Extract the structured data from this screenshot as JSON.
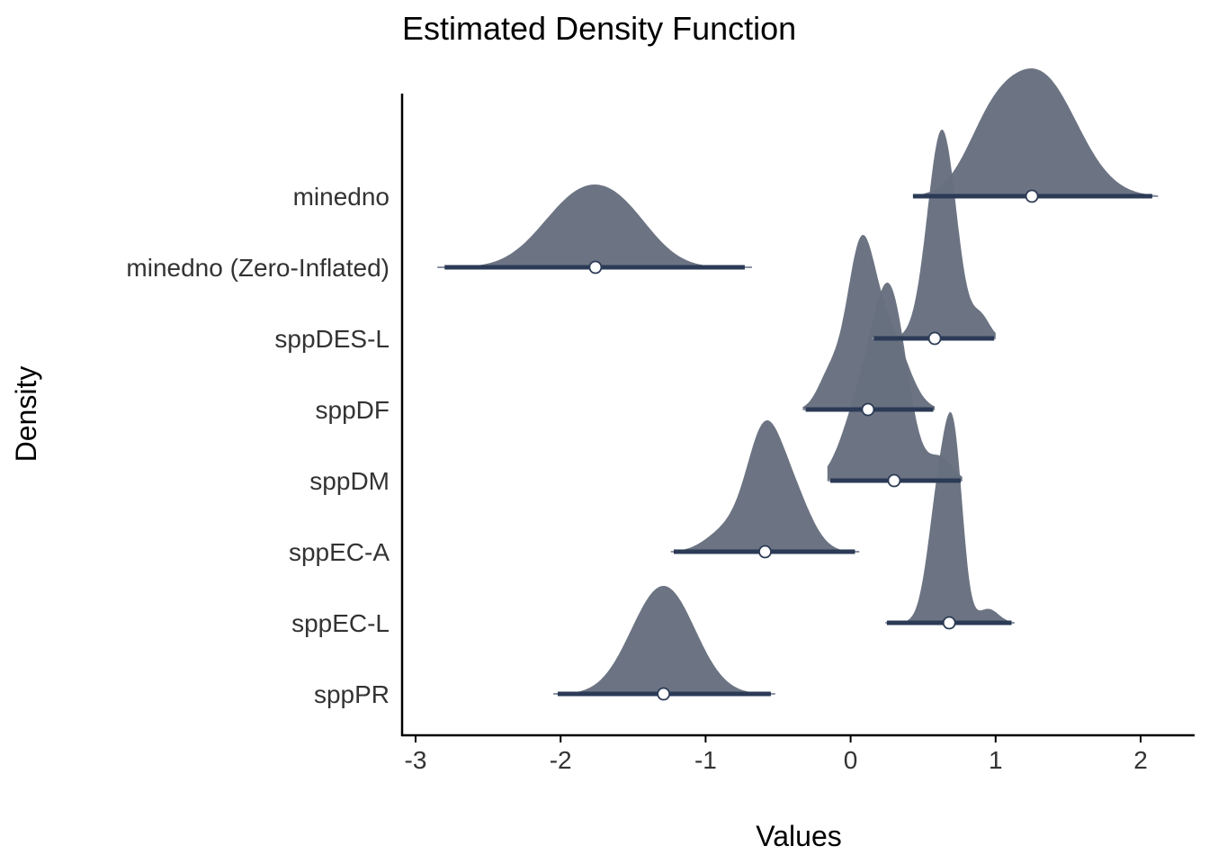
{
  "chart_data": {
    "type": "ridgeline-density",
    "title": "Estimated Density Function",
    "xlabel": "Values",
    "ylabel": "Density",
    "xlim": [
      -3.1,
      2.35
    ],
    "x_ticks": [
      -3,
      -2,
      -1,
      0,
      1,
      2
    ],
    "x_tick_labels": [
      "-3",
      "-2",
      "-1",
      "0",
      "1",
      "2"
    ],
    "grid": false,
    "colors": {
      "fill": "#67707f",
      "interval": "#2b3a55",
      "point": "#ffffff"
    },
    "series": [
      {
        "name": "minedno",
        "median": 1.25,
        "ci_outer": [
          0.43,
          2.12
        ],
        "ci_inner": [
          0.43,
          2.08
        ],
        "components": [
          {
            "mu": 1.3,
            "sd": 0.26,
            "w": 0.85
          },
          {
            "mu": 0.95,
            "sd": 0.17,
            "w": 0.3
          }
        ],
        "peak": 142
      },
      {
        "name": "minedno (Zero-Inflated)",
        "median": -1.76,
        "ci_outer": [
          -2.85,
          -0.68
        ],
        "ci_inner": [
          -2.8,
          -0.73
        ],
        "components": [
          {
            "mu": -1.88,
            "sd": 0.26,
            "w": 0.8
          },
          {
            "mu": -1.55,
            "sd": 0.22,
            "w": 0.45
          }
        ],
        "peak": 92
      },
      {
        "name": "sppDES-L",
        "median": 0.58,
        "ci_outer": [
          0.15,
          1.0
        ],
        "ci_inner": [
          0.16,
          0.99
        ],
        "components": [
          {
            "mu": 0.63,
            "sd": 0.1,
            "w": 1.0
          },
          {
            "mu": 0.9,
            "sd": 0.06,
            "w": 0.1
          }
        ],
        "peak": 232
      },
      {
        "name": "sppDF",
        "median": 0.12,
        "ci_outer": [
          -0.33,
          0.58
        ],
        "ci_inner": [
          -0.31,
          0.57
        ],
        "components": [
          {
            "mu": 0.07,
            "sd": 0.1,
            "w": 1.0
          },
          {
            "mu": 0.28,
            "sd": 0.12,
            "w": 0.45
          },
          {
            "mu": -0.15,
            "sd": 0.08,
            "w": 0.2
          }
        ],
        "peak": 194
      },
      {
        "name": "sppDM",
        "median": 0.3,
        "ci_outer": [
          -0.16,
          0.77
        ],
        "ci_inner": [
          -0.14,
          0.76
        ],
        "components": [
          {
            "mu": 0.27,
            "sd": 0.12,
            "w": 1.0
          },
          {
            "mu": 0.05,
            "sd": 0.12,
            "w": 0.35
          },
          {
            "mu": 0.62,
            "sd": 0.08,
            "w": 0.12
          }
        ],
        "peak": 220
      },
      {
        "name": "sppEC-A",
        "median": -0.59,
        "ci_outer": [
          -1.24,
          0.06
        ],
        "ci_inner": [
          -1.22,
          0.03
        ],
        "components": [
          {
            "mu": -0.6,
            "sd": 0.12,
            "w": 1.0
          },
          {
            "mu": -0.4,
            "sd": 0.13,
            "w": 0.5
          },
          {
            "mu": -0.85,
            "sd": 0.14,
            "w": 0.2
          }
        ],
        "peak": 146
      },
      {
        "name": "sppEC-L",
        "median": 0.68,
        "ci_outer": [
          0.24,
          1.13
        ],
        "ci_inner": [
          0.25,
          1.11
        ],
        "components": [
          {
            "mu": 0.62,
            "sd": 0.08,
            "w": 1.0
          },
          {
            "mu": 0.72,
            "sd": 0.06,
            "w": 0.95
          },
          {
            "mu": 0.95,
            "sd": 0.07,
            "w": 0.1
          }
        ],
        "peak": 234
      },
      {
        "name": "sppPR",
        "median": -1.29,
        "ci_outer": [
          -2.05,
          -0.52
        ],
        "ci_inner": [
          -2.02,
          -0.55
        ],
        "components": [
          {
            "mu": -1.25,
            "sd": 0.2,
            "w": 1.0
          },
          {
            "mu": -1.45,
            "sd": 0.18,
            "w": 0.3
          }
        ],
        "peak": 120
      }
    ]
  }
}
